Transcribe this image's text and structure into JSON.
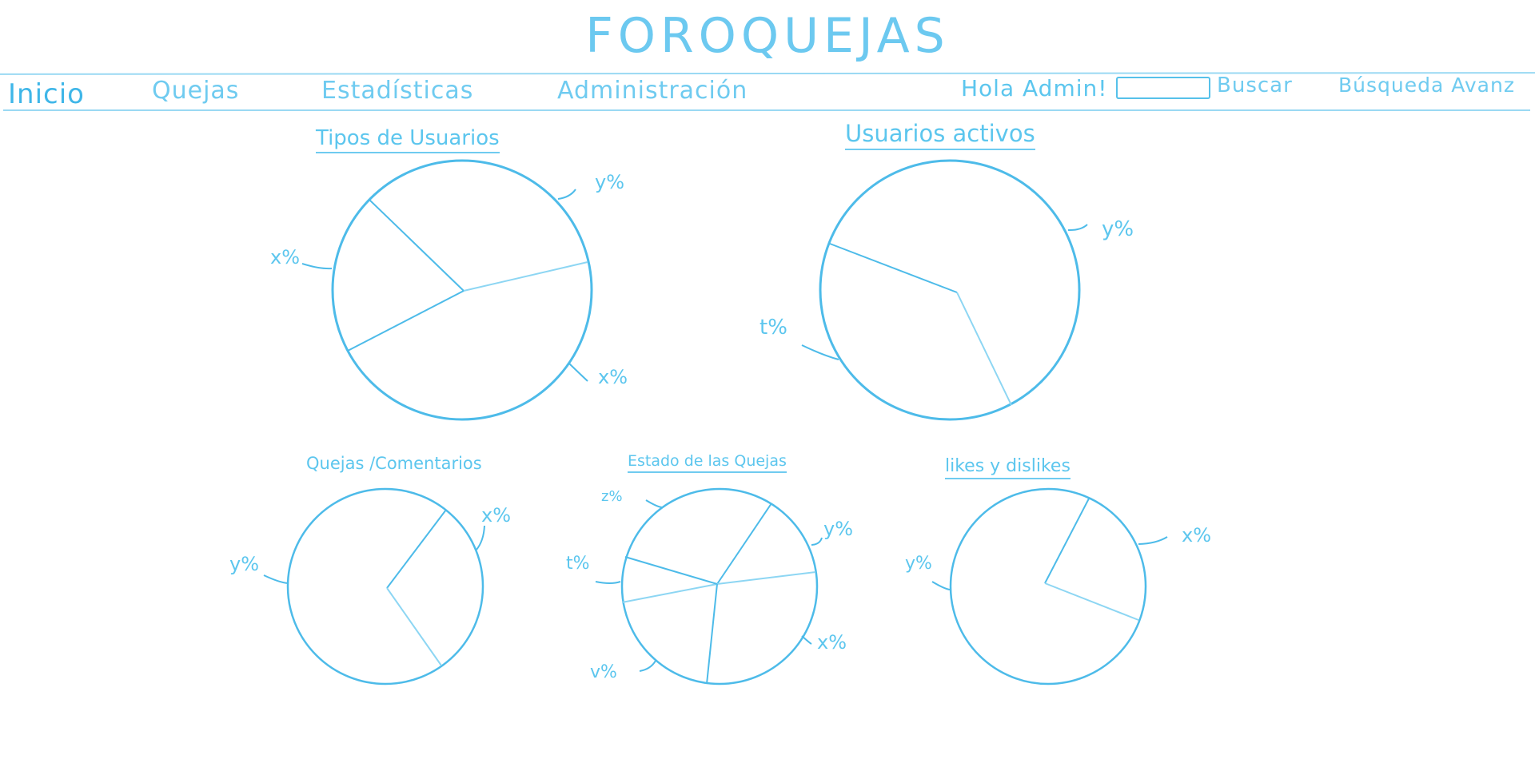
{
  "app": {
    "title": "FOROQUEJAS"
  },
  "nav": {
    "items": [
      {
        "label": "Inicio"
      },
      {
        "label": "Quejas"
      },
      {
        "label": "Estadísticas"
      },
      {
        "label": "Administración"
      }
    ],
    "greeting": "Hola Admin!",
    "search": {
      "value": "",
      "placeholder": ""
    },
    "search_label": "Buscar",
    "advanced_search": "Búsqueda Avanz"
  },
  "colors": {
    "stroke": "#4dbbe9",
    "light_stroke": "#8dd6f3",
    "text": "#5cc6ee"
  },
  "chart_data": [
    {
      "type": "pie",
      "title": "Tipos de Usuarios",
      "slices": [
        {
          "label": "x%"
        },
        {
          "label": "y%"
        },
        {
          "label": "x%"
        }
      ]
    },
    {
      "type": "pie",
      "title": "Usuarios activos",
      "slices": [
        {
          "label": "y%"
        },
        {
          "label": "t%"
        }
      ]
    },
    {
      "type": "pie",
      "title": "Quejas /Comentarios",
      "slices": [
        {
          "label": "x%"
        },
        {
          "label": "y%"
        }
      ]
    },
    {
      "type": "pie",
      "title": "Estado de las Quejas",
      "slices": [
        {
          "label": "y%"
        },
        {
          "label": "x%"
        },
        {
          "label": "v%"
        },
        {
          "label": "t%"
        },
        {
          "label": "z%"
        }
      ]
    },
    {
      "type": "pie",
      "title": "likes y dislikes",
      "slices": [
        {
          "label": "x%"
        },
        {
          "label": "y%"
        }
      ]
    }
  ]
}
